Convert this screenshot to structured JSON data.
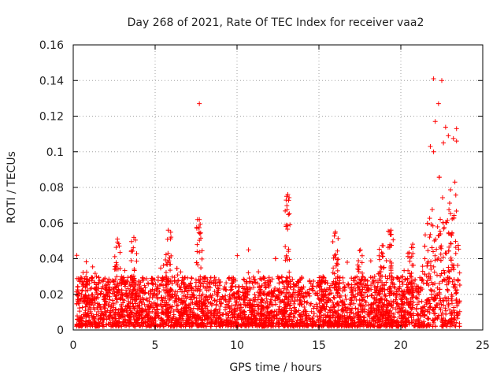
{
  "chart_data": {
    "type": "scatter",
    "title": "Day 268 of 2021, Rate Of TEC Index for receiver vaa2",
    "xlabel": "GPS time / hours",
    "ylabel": "ROTI / TECUs",
    "xlim": [
      0,
      25
    ],
    "ylim": [
      0,
      0.16
    ],
    "xticks": [
      "0",
      "5",
      "10",
      "15",
      "20",
      "25"
    ],
    "yticks": [
      "0",
      "0.02",
      "0.04",
      "0.06",
      "0.08",
      "0.1",
      "0.12",
      "0.14",
      "0.16"
    ],
    "grid": true,
    "marker": "+",
    "series_color": "#ff0000",
    "dense_band": {
      "x_range": [
        0.2,
        23.6
      ],
      "y_typical_range": [
        0.002,
        0.03
      ]
    },
    "notable_points": [
      {
        "x": 7.7,
        "y": 0.127
      },
      {
        "x": 13.1,
        "y": 0.076
      },
      {
        "x": 5.8,
        "y": 0.056
      },
      {
        "x": 7.7,
        "y": 0.062
      },
      {
        "x": 16.0,
        "y": 0.055
      },
      {
        "x": 19.4,
        "y": 0.056
      },
      {
        "x": 10.7,
        "y": 0.045
      },
      {
        "x": 2.7,
        "y": 0.051
      },
      {
        "x": 3.7,
        "y": 0.052
      },
      {
        "x": 22.0,
        "y": 0.141
      },
      {
        "x": 22.5,
        "y": 0.14
      },
      {
        "x": 22.3,
        "y": 0.127
      },
      {
        "x": 22.1,
        "y": 0.117
      },
      {
        "x": 22.9,
        "y": 0.109
      },
      {
        "x": 23.4,
        "y": 0.113
      },
      {
        "x": 23.4,
        "y": 0.106
      },
      {
        "x": 21.8,
        "y": 0.103
      },
      {
        "x": 22.0,
        "y": 0.1
      },
      {
        "x": 22.6,
        "y": 0.105
      },
      {
        "x": 23.3,
        "y": 0.083
      }
    ]
  }
}
